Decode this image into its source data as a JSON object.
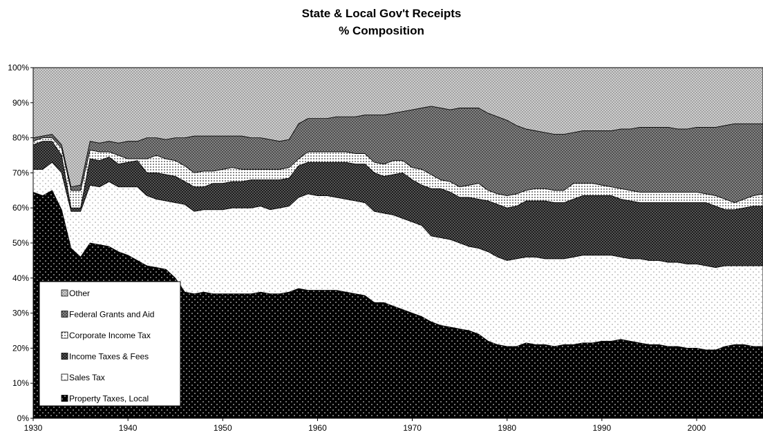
{
  "chart_data": {
    "type": "area",
    "stacked": true,
    "title": "State & Local Gov't Receipts",
    "subtitle": "% Composition",
    "xlabel": "",
    "ylabel": "",
    "xlim": [
      1930,
      2007
    ],
    "ylim": [
      0,
      100
    ],
    "y_ticks": [
      "0%",
      "10%",
      "20%",
      "30%",
      "40%",
      "50%",
      "60%",
      "70%",
      "80%",
      "90%",
      "100%"
    ],
    "x_ticks": [
      "1930",
      "1940",
      "1950",
      "1960",
      "1970",
      "1980",
      "1990",
      "2000"
    ],
    "grid": false,
    "legend_position": "bottom-left",
    "x": [
      1930,
      1931,
      1932,
      1933,
      1934,
      1935,
      1936,
      1937,
      1938,
      1939,
      1940,
      1941,
      1942,
      1943,
      1944,
      1945,
      1946,
      1947,
      1948,
      1949,
      1950,
      1951,
      1952,
      1953,
      1954,
      1955,
      1956,
      1957,
      1958,
      1959,
      1960,
      1961,
      1962,
      1963,
      1964,
      1965,
      1966,
      1967,
      1968,
      1969,
      1970,
      1971,
      1972,
      1973,
      1974,
      1975,
      1976,
      1977,
      1978,
      1979,
      1980,
      1981,
      1982,
      1983,
      1984,
      1985,
      1986,
      1987,
      1988,
      1989,
      1990,
      1991,
      1992,
      1993,
      1994,
      1995,
      1996,
      1997,
      1998,
      1999,
      2000,
      2001,
      2002,
      2003,
      2004,
      2005,
      2006,
      2007
    ],
    "series": [
      {
        "name": "Property Taxes, Local",
        "cumulative": [
          64.5,
          63.5,
          65,
          59.5,
          48.5,
          46,
          50,
          49.5,
          49,
          47.5,
          46.5,
          45,
          43.5,
          43,
          42.5,
          40,
          36,
          35.5,
          36,
          35.5,
          35.5,
          35.5,
          35.5,
          35.5,
          36,
          35.5,
          35.5,
          36,
          37,
          36.5,
          36.5,
          36.5,
          36.5,
          36,
          35.5,
          35,
          33,
          33,
          32,
          31,
          30,
          29,
          27.5,
          26.5,
          26,
          25.5,
          25,
          24,
          22,
          21,
          20.5,
          20.5,
          21.5,
          21,
          21,
          20.5,
          21,
          21,
          21.5,
          21.5,
          22,
          22,
          22.5,
          22,
          21.5,
          21,
          21,
          20.5,
          20.5,
          20,
          20,
          19.5,
          19.5,
          20.5,
          21,
          21,
          20.5,
          20.5
        ]
      },
      {
        "name": "Sales Tax",
        "cumulative": [
          71,
          71,
          73,
          70,
          59,
          59,
          66.5,
          66,
          67.5,
          66,
          66,
          66,
          63.5,
          62.5,
          62,
          61.5,
          61,
          59,
          59.5,
          59.5,
          59.5,
          60,
          60,
          60,
          60.5,
          59.5,
          60,
          60.5,
          63,
          64,
          63.5,
          63.5,
          63,
          62.5,
          62,
          61.5,
          59,
          58.5,
          58,
          57,
          56,
          55,
          52,
          51.5,
          51,
          50,
          49,
          48.5,
          47.5,
          46,
          45,
          45.5,
          46,
          46,
          45.5,
          45.5,
          45.5,
          46,
          46.5,
          46.5,
          46.5,
          46.5,
          46,
          45.5,
          45.5,
          45,
          45,
          44.5,
          44.5,
          44,
          44,
          43.5,
          43,
          43.5,
          43.5,
          43.5,
          43.5,
          43.5
        ]
      },
      {
        "name": "Income Taxes & Fees",
        "cumulative": [
          78,
          79,
          79,
          75,
          60,
          60,
          74,
          73.5,
          74.5,
          72.5,
          73,
          73.5,
          70,
          70,
          69.5,
          69,
          67.5,
          66,
          66,
          67,
          67,
          67.5,
          67.5,
          68,
          68,
          68,
          68,
          68.5,
          72,
          73,
          73,
          73,
          73,
          73,
          72.5,
          72.5,
          70,
          69,
          69.5,
          70,
          68,
          66.5,
          65.5,
          65.5,
          64.5,
          63,
          63,
          62.5,
          62,
          61,
          60,
          60.5,
          62,
          62,
          62,
          61.5,
          61.5,
          62.5,
          63.5,
          63.5,
          63.5,
          63.5,
          62.5,
          62,
          61.5,
          61.5,
          61.5,
          61.5,
          61.5,
          61.5,
          61.5,
          61.5,
          60.5,
          59.5,
          59.5,
          60,
          60.5,
          60.5
        ]
      },
      {
        "name": "Corporate Income Tax",
        "cumulative": [
          79,
          80,
          80,
          77,
          65,
          65,
          76.5,
          76,
          76,
          75,
          74,
          74,
          74,
          75,
          74,
          73.5,
          72,
          70,
          70.5,
          70.5,
          71,
          71.5,
          71,
          71,
          71,
          71,
          71,
          71.5,
          74,
          76,
          76,
          76,
          76,
          76,
          75.5,
          75.5,
          73,
          72.5,
          73.5,
          73.5,
          71.5,
          71,
          69.5,
          68,
          67.5,
          66,
          66.5,
          67,
          65,
          64,
          63.5,
          64,
          65,
          65.5,
          65.5,
          65,
          65,
          67,
          67,
          67,
          66.5,
          66,
          65.5,
          65,
          64.5,
          64.5,
          64.5,
          64.5,
          64.5,
          64.5,
          64.5,
          64,
          63.5,
          62.5,
          61.5,
          62.5,
          63.5,
          64
        ]
      },
      {
        "name": "Federal Grants and Aid",
        "cumulative": [
          80,
          80.5,
          81,
          78,
          66,
          66.5,
          79,
          78.5,
          79,
          78.5,
          79,
          79,
          80,
          80,
          79.5,
          80,
          80,
          80.5,
          80.5,
          80.5,
          80.5,
          80.5,
          80.5,
          80,
          80,
          79.5,
          79,
          79.5,
          84,
          85.5,
          85.5,
          85.5,
          86,
          86,
          86,
          86.5,
          86.5,
          86.5,
          87,
          87.5,
          88,
          88.5,
          89,
          88.5,
          88,
          88.5,
          88.5,
          88.5,
          87,
          86,
          85,
          83.5,
          82.5,
          82,
          81.5,
          81,
          81,
          81.5,
          82,
          82,
          82,
          82,
          82.5,
          82.5,
          83,
          83,
          83,
          83,
          82.5,
          82.5,
          83,
          83,
          83,
          83.5,
          84,
          84,
          84,
          84
        ]
      },
      {
        "name": "Other",
        "cumulative": [
          100,
          100,
          100,
          100,
          100,
          100,
          100,
          100,
          100,
          100,
          100,
          100,
          100,
          100,
          100,
          100,
          100,
          100,
          100,
          100,
          100,
          100,
          100,
          100,
          100,
          100,
          100,
          100,
          100,
          100,
          100,
          100,
          100,
          100,
          100,
          100,
          100,
          100,
          100,
          100,
          100,
          100,
          100,
          100,
          100,
          100,
          100,
          100,
          100,
          100,
          100,
          100,
          100,
          100,
          100,
          100,
          100,
          100,
          100,
          100,
          100,
          100,
          100,
          100,
          100,
          100,
          100,
          100,
          100,
          100,
          100,
          100,
          100,
          100,
          100,
          100,
          100,
          100
        ]
      }
    ],
    "legend_entries": [
      "Other",
      "Federal Grants and Aid",
      "Corporate Income Tax",
      "Income Taxes & Fees",
      "Sales Tax",
      "Property Taxes, Local"
    ],
    "colors": {
      "property": "#000000",
      "sales": "#ffffff",
      "income": "#222222",
      "corporate": "#ffffff",
      "federal": "#555555",
      "other": "#b0b0b0"
    }
  }
}
